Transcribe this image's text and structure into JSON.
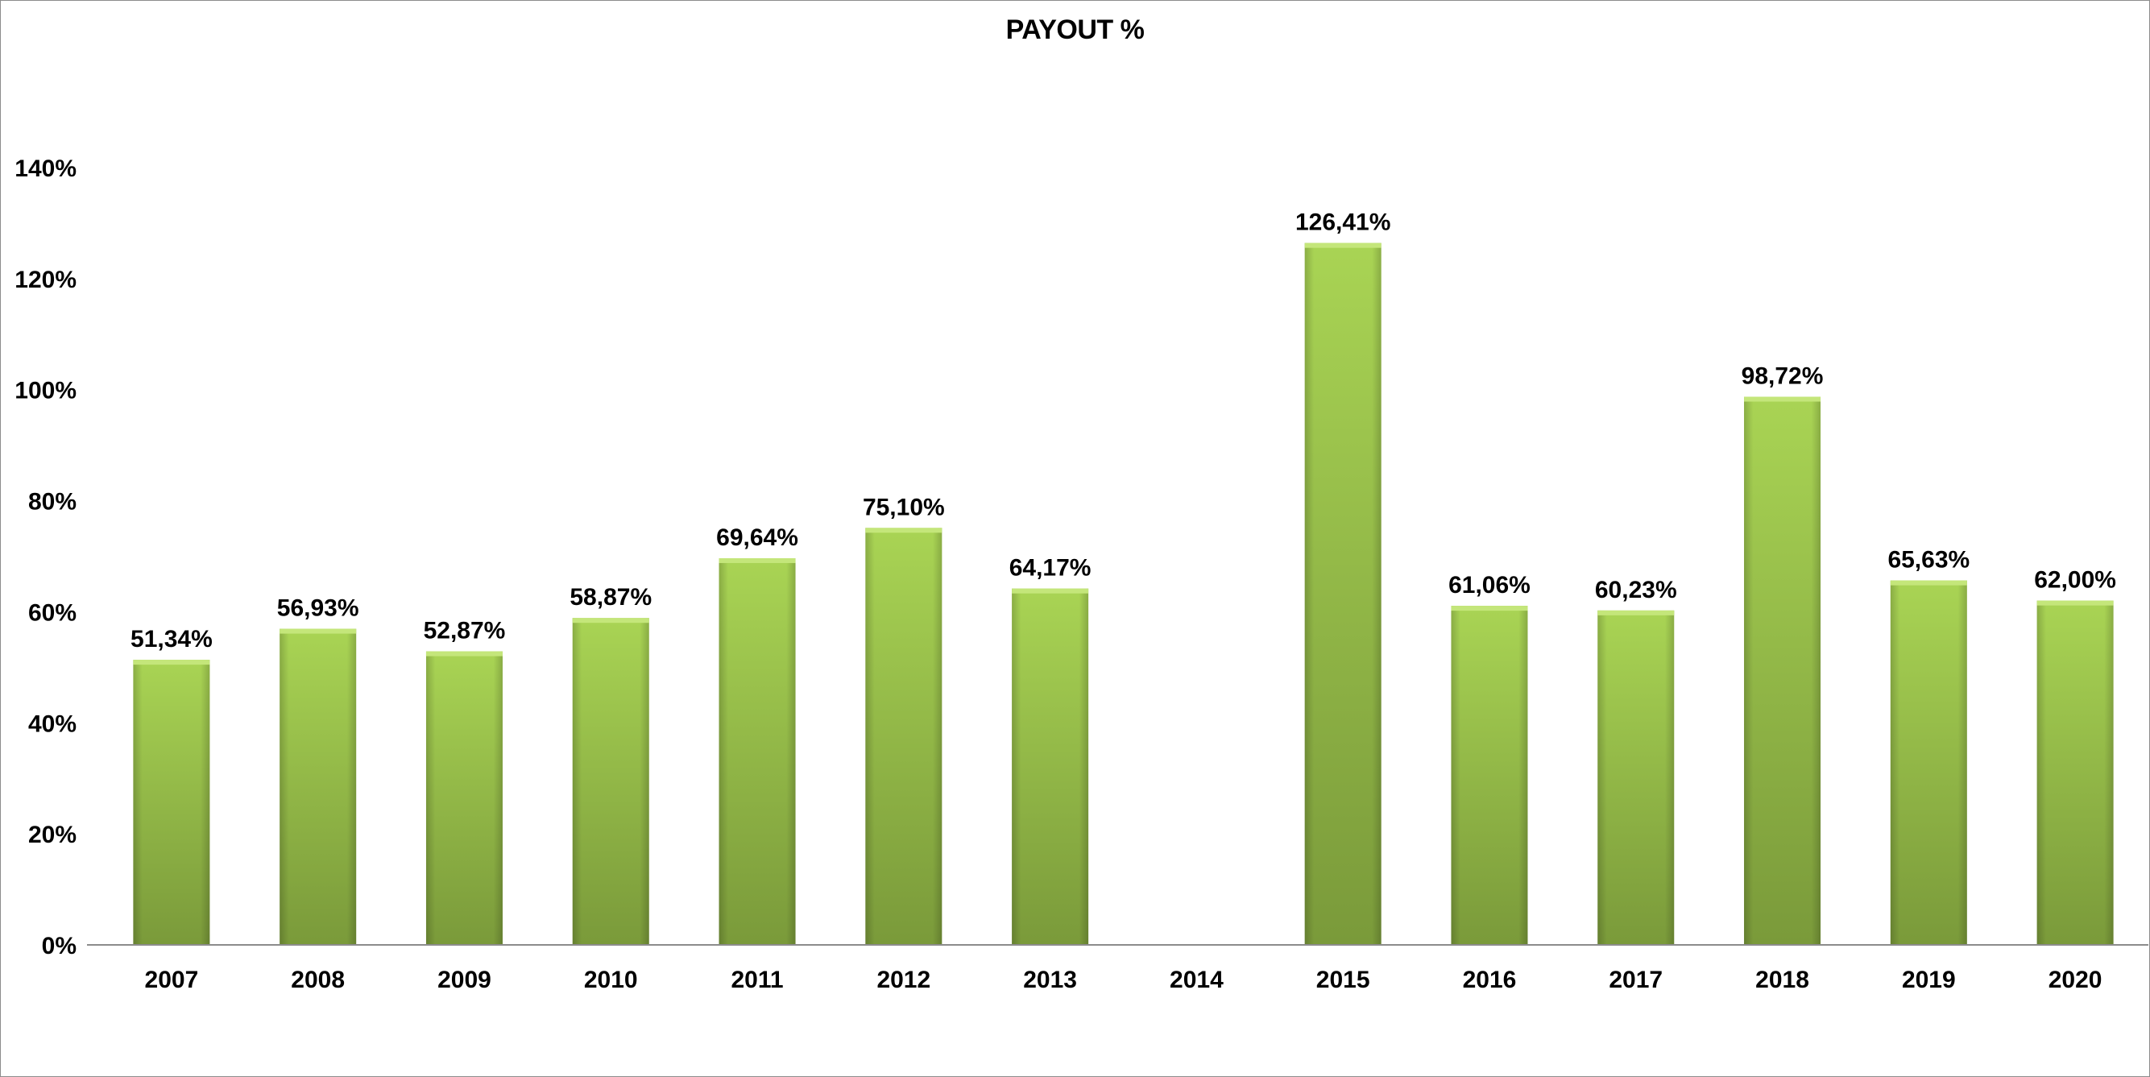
{
  "chart_data": {
    "type": "bar",
    "title": "PAYOUT %",
    "xlabel": "",
    "ylabel": "",
    "categories": [
      "2007",
      "2008",
      "2009",
      "2010",
      "2011",
      "2012",
      "2013",
      "2014",
      "2015",
      "2016",
      "2017",
      "2018",
      "2019",
      "2020"
    ],
    "values": [
      51.34,
      56.93,
      52.87,
      58.87,
      69.64,
      75.1,
      64.17,
      null,
      126.41,
      61.06,
      60.23,
      98.72,
      65.63,
      62.0
    ],
    "data_labels": [
      "51,34%",
      "56,93%",
      "52,87%",
      "58,87%",
      "69,64%",
      "75,10%",
      "64,17%",
      "",
      "126,41%",
      "61,06%",
      "60,23%",
      "98,72%",
      "65,63%",
      "62,00%"
    ],
    "ylim": [
      0,
      140
    ],
    "yticks": [
      0,
      20,
      40,
      60,
      80,
      100,
      120,
      140
    ],
    "ytick_labels": [
      "0%",
      "20%",
      "40%",
      "60%",
      "80%",
      "100%",
      "120%",
      "140%"
    ],
    "grid": false,
    "legend": "none",
    "colors": {
      "bar_light": "#a9d454",
      "bar_dark": "#7a9a3a",
      "bar_top": "#c4e67a",
      "axis": "#8c8c8c"
    }
  }
}
